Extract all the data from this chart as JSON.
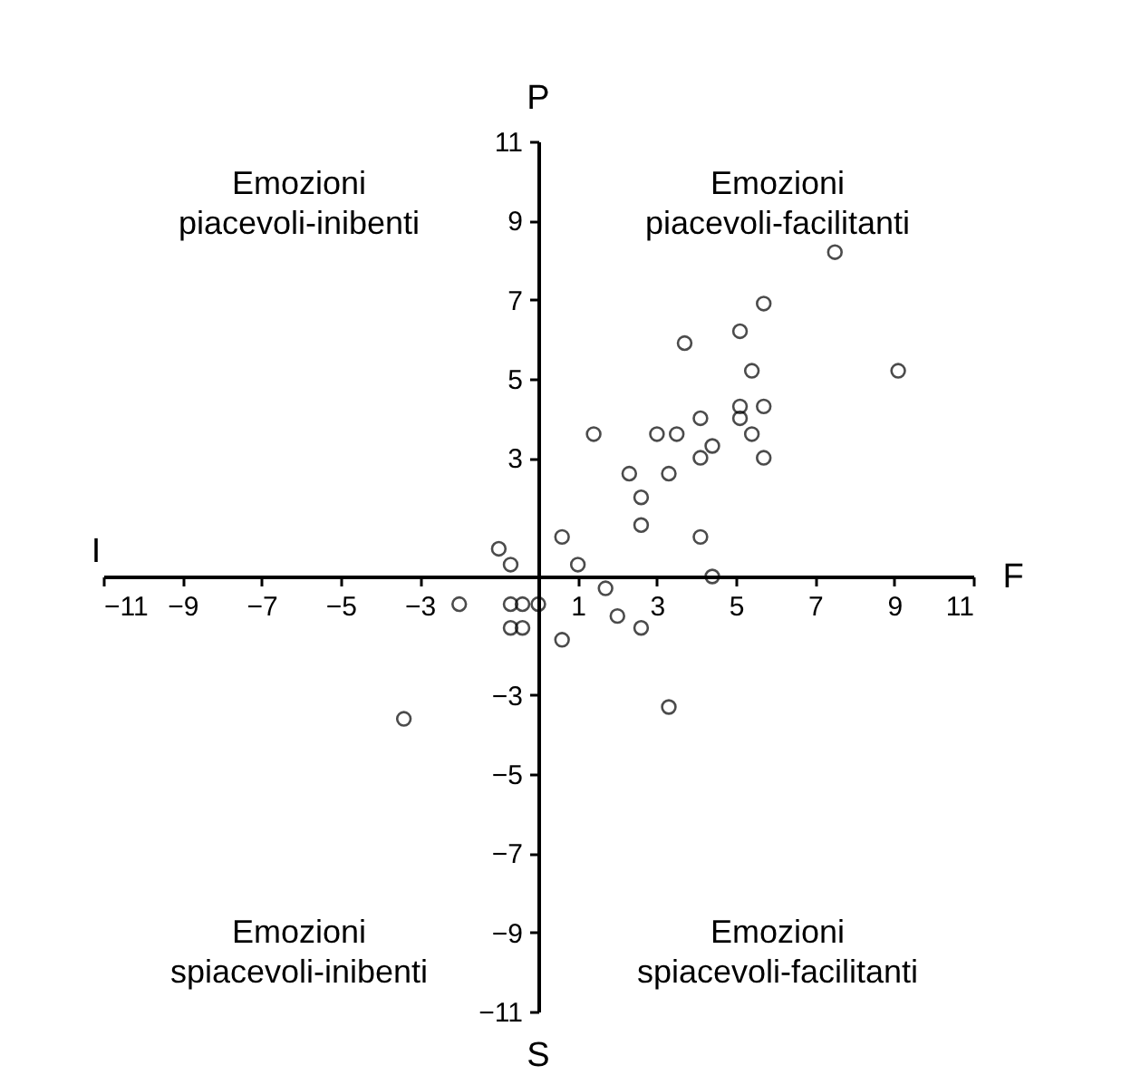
{
  "chart_data": {
    "type": "scatter",
    "xlabel": "F",
    "ylabel": "P",
    "annotations": [
      "Emozioni piacevoli-inibenti",
      "Emozioni piacevoli-facilitanti",
      "Emozioni spiacevoli-inibenti",
      "Emozioni spiacevoli-facilitanti",
      "I",
      "S"
    ],
    "x": [
      7.5,
      5.7,
      5.1,
      3.7,
      5.4,
      9.1,
      5.1,
      5.7,
      5.1,
      4.1,
      1.4,
      3.0,
      3.5,
      5.4,
      4.4,
      4.1,
      5.7,
      2.3,
      3.3,
      2.6,
      2.6,
      0.6,
      4.1,
      -1.0,
      -0.7,
      1.0,
      4.4,
      1.7,
      -2.0,
      -0.7,
      -0.4,
      0.0,
      2.0,
      -0.7,
      -0.4,
      2.6,
      0.6,
      3.3,
      -3.4
    ],
    "values": [
      8.2,
      6.9,
      6.2,
      5.9,
      5.2,
      5.2,
      4.3,
      4.3,
      4.0,
      4.0,
      3.6,
      3.6,
      3.6,
      3.6,
      3.3,
      3.0,
      3.0,
      2.6,
      2.6,
      2.0,
      1.3,
      1.0,
      1.0,
      0.7,
      0.3,
      0.3,
      0.0,
      -0.3,
      -0.7,
      -0.7,
      -0.7,
      -0.7,
      -1.0,
      -1.3,
      -1.3,
      -1.3,
      -1.6,
      -3.3,
      -3.6
    ],
    "color": "#000000",
    "marker": "circle",
    "grid": false,
    "xlim": [
      -11,
      11
    ],
    "ylim": [
      -11,
      11
    ],
    "xticks": [
      -11,
      -9,
      -7,
      -5,
      -3,
      1,
      3,
      5,
      7,
      9,
      11
    ],
    "yticks": [
      -11,
      -9,
      -7,
      -5,
      -3,
      3,
      5,
      7,
      9,
      11
    ]
  }
}
